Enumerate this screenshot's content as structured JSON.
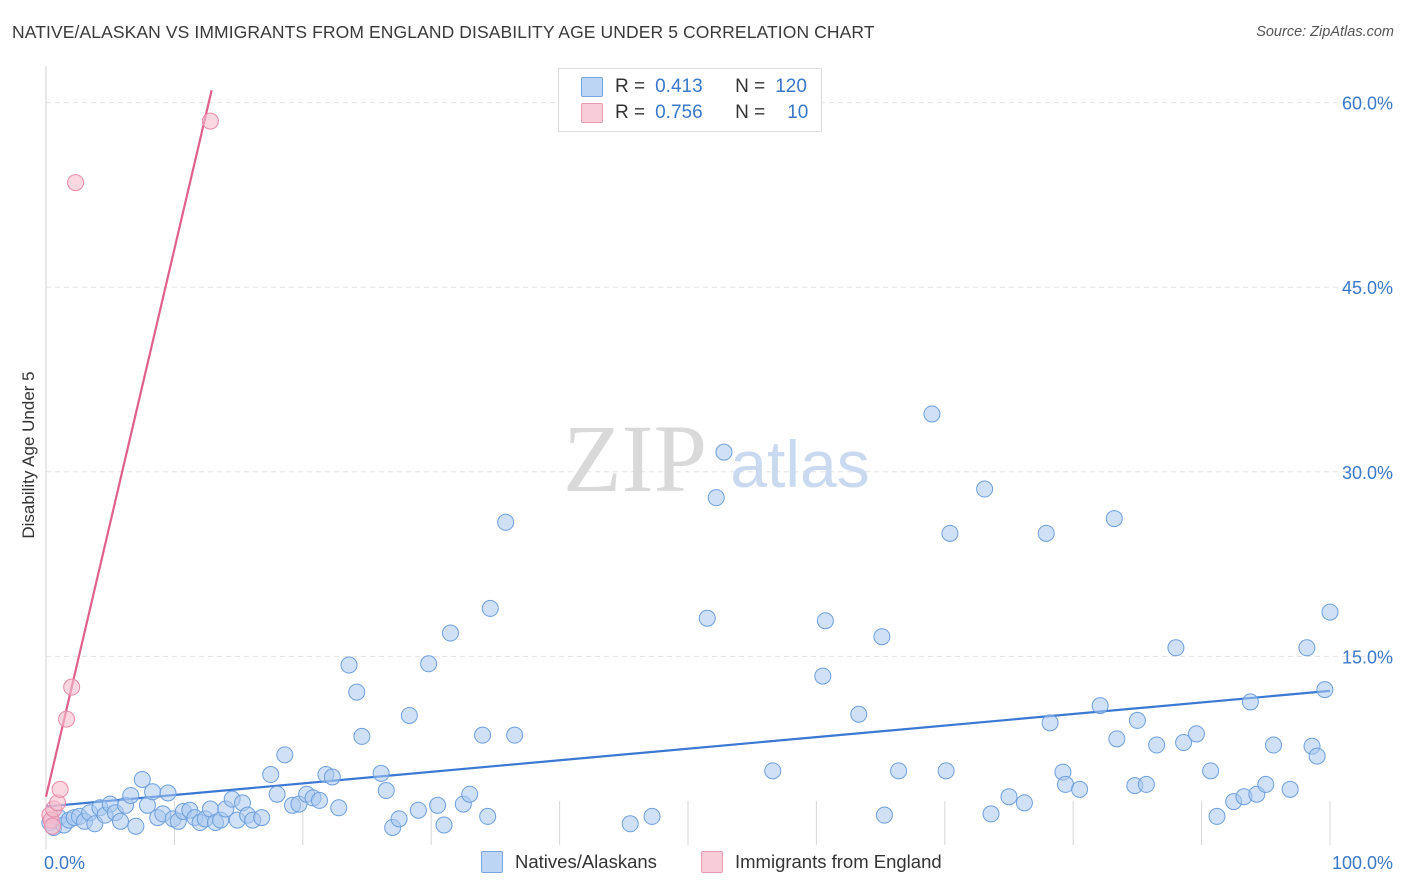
{
  "title": "NATIVE/ALASKAN VS IMMIGRANTS FROM ENGLAND DISABILITY AGE UNDER 5 CORRELATION CHART",
  "source": "Source: ZipAtlas.com",
  "watermark": {
    "zip": "ZIP",
    "atlas": "atlas"
  },
  "colors": {
    "blue_fill": "#aac8f0",
    "blue_stroke": "#6d9fdc",
    "blue_line": "#3a78d4",
    "pink_fill": "#f6bccd",
    "pink_stroke": "#e88aa8",
    "pink_line": "#e05f8c",
    "tick_text": "#3a78c9",
    "grid": "#e3e3e3"
  },
  "legend": {
    "rows": [
      {
        "r_label": "R =",
        "r_value": "0.413",
        "n_label": "N =",
        "n_value": "120"
      },
      {
        "r_label": "R =",
        "r_value": "0.756",
        "n_label": "N =",
        "n_value": "10"
      }
    ]
  },
  "bottom_legend": {
    "natives": "Natives/Alaskans",
    "immigrants": "Immigrants from England"
  },
  "chart_data": {
    "type": "scatter",
    "title": "NATIVE/ALASKAN VS IMMIGRANTS FROM ENGLAND DISABILITY AGE UNDER 5 CORRELATION CHART",
    "xlabel": "",
    "ylabel": "Disability Age Under 5",
    "xlim": [
      0,
      100
    ],
    "ylim": [
      0,
      62
    ],
    "x_tick_labels": [
      "0.0%",
      "100.0%"
    ],
    "y_ticks": [
      15,
      30,
      45,
      60
    ],
    "y_tick_labels": [
      "15.0%",
      "30.0%",
      "45.0%",
      "60.0%"
    ],
    "grid": true,
    "series": [
      {
        "name": "Natives/Alaskans",
        "r": 0.413,
        "n": 120,
        "trend": {
          "x": [
            0,
            100
          ],
          "y": [
            2.8,
            12.2
          ]
        },
        "points": [
          [
            0.3,
            1.5
          ],
          [
            0.6,
            1.1
          ],
          [
            1.0,
            1.9
          ],
          [
            1.4,
            1.3
          ],
          [
            1.8,
            1.7
          ],
          [
            2.2,
            1.9
          ],
          [
            2.6,
            2.0
          ],
          [
            3.0,
            1.6
          ],
          [
            3.4,
            2.3
          ],
          [
            3.8,
            1.4
          ],
          [
            4.2,
            2.7
          ],
          [
            4.6,
            2.1
          ],
          [
            5.0,
            3.0
          ],
          [
            5.4,
            2.3
          ],
          [
            5.8,
            1.6
          ],
          [
            6.2,
            2.9
          ],
          [
            6.6,
            3.7
          ],
          [
            7.0,
            1.2
          ],
          [
            7.5,
            5.0
          ],
          [
            7.9,
            2.9
          ],
          [
            8.3,
            4.0
          ],
          [
            8.7,
            1.9
          ],
          [
            9.1,
            2.2
          ],
          [
            9.5,
            3.9
          ],
          [
            9.9,
            1.8
          ],
          [
            10.3,
            1.6
          ],
          [
            10.7,
            2.4
          ],
          [
            11.2,
            2.5
          ],
          [
            11.6,
            1.9
          ],
          [
            12.0,
            1.5
          ],
          [
            12.4,
            1.8
          ],
          [
            12.8,
            2.6
          ],
          [
            13.2,
            1.5
          ],
          [
            13.6,
            1.7
          ],
          [
            14.0,
            2.6
          ],
          [
            14.5,
            3.4
          ],
          [
            14.9,
            1.7
          ],
          [
            15.3,
            3.1
          ],
          [
            15.7,
            2.1
          ],
          [
            16.1,
            1.7
          ],
          [
            16.8,
            1.9
          ],
          [
            17.5,
            5.4
          ],
          [
            18.0,
            3.8
          ],
          [
            18.6,
            7.0
          ],
          [
            19.2,
            2.9
          ],
          [
            19.7,
            3.0
          ],
          [
            20.3,
            3.8
          ],
          [
            20.8,
            3.5
          ],
          [
            21.3,
            3.3
          ],
          [
            21.8,
            5.4
          ],
          [
            22.3,
            5.2
          ],
          [
            22.8,
            2.7
          ],
          [
            23.6,
            14.3
          ],
          [
            24.2,
            12.1
          ],
          [
            24.6,
            8.5
          ],
          [
            26.1,
            5.5
          ],
          [
            26.5,
            4.1
          ],
          [
            27.0,
            1.1
          ],
          [
            27.5,
            1.8
          ],
          [
            28.3,
            10.2
          ],
          [
            29.0,
            2.5
          ],
          [
            29.8,
            14.4
          ],
          [
            30.5,
            2.9
          ],
          [
            31.0,
            1.3
          ],
          [
            31.5,
            16.9
          ],
          [
            32.5,
            3.0
          ],
          [
            33.0,
            3.8
          ],
          [
            34.0,
            8.6
          ],
          [
            34.4,
            2.0
          ],
          [
            34.6,
            18.9
          ],
          [
            35.8,
            25.9
          ],
          [
            36.5,
            8.6
          ],
          [
            45.5,
            1.4
          ],
          [
            47.2,
            2.0
          ],
          [
            51.5,
            18.1
          ],
          [
            52.2,
            27.9
          ],
          [
            52.8,
            31.6
          ],
          [
            56.6,
            5.7
          ],
          [
            60.5,
            13.4
          ],
          [
            60.7,
            17.9
          ],
          [
            63.3,
            10.3
          ],
          [
            65.1,
            16.6
          ],
          [
            65.3,
            2.1
          ],
          [
            66.4,
            5.7
          ],
          [
            69.0,
            34.7
          ],
          [
            70.1,
            5.7
          ],
          [
            70.4,
            25.0
          ],
          [
            73.1,
            28.6
          ],
          [
            73.6,
            2.2
          ],
          [
            75.0,
            3.6
          ],
          [
            76.2,
            3.1
          ],
          [
            77.9,
            25.0
          ],
          [
            78.2,
            9.6
          ],
          [
            79.2,
            5.6
          ],
          [
            79.4,
            4.6
          ],
          [
            80.5,
            4.2
          ],
          [
            82.1,
            11.0
          ],
          [
            83.2,
            26.2
          ],
          [
            83.4,
            8.3
          ],
          [
            84.8,
            4.5
          ],
          [
            85.0,
            9.8
          ],
          [
            85.7,
            4.6
          ],
          [
            86.5,
            7.8
          ],
          [
            88.0,
            15.7
          ],
          [
            88.6,
            8.0
          ],
          [
            89.6,
            8.7
          ],
          [
            90.7,
            5.7
          ],
          [
            91.2,
            2.0
          ],
          [
            92.5,
            3.2
          ],
          [
            93.3,
            3.6
          ],
          [
            93.8,
            11.3
          ],
          [
            94.3,
            3.8
          ],
          [
            95.0,
            4.6
          ],
          [
            95.6,
            7.8
          ],
          [
            96.9,
            4.2
          ],
          [
            98.2,
            15.7
          ],
          [
            98.6,
            7.7
          ],
          [
            99.0,
            6.9
          ],
          [
            99.6,
            12.3
          ],
          [
            100.0,
            18.6
          ]
        ]
      },
      {
        "name": "Immigrants from England",
        "r": 0.756,
        "n": 10,
        "trend": {
          "x": [
            0.0,
            12.9
          ],
          "y": [
            3.6,
            61.0
          ]
        },
        "points": [
          [
            0.3,
            2.1
          ],
          [
            0.4,
            1.7
          ],
          [
            0.5,
            1.2
          ],
          [
            0.6,
            2.6
          ],
          [
            0.9,
            3.1
          ],
          [
            1.1,
            4.2
          ],
          [
            1.6,
            9.9
          ],
          [
            2.0,
            12.5
          ],
          [
            2.3,
            53.5
          ],
          [
            12.8,
            58.5
          ]
        ]
      }
    ]
  }
}
